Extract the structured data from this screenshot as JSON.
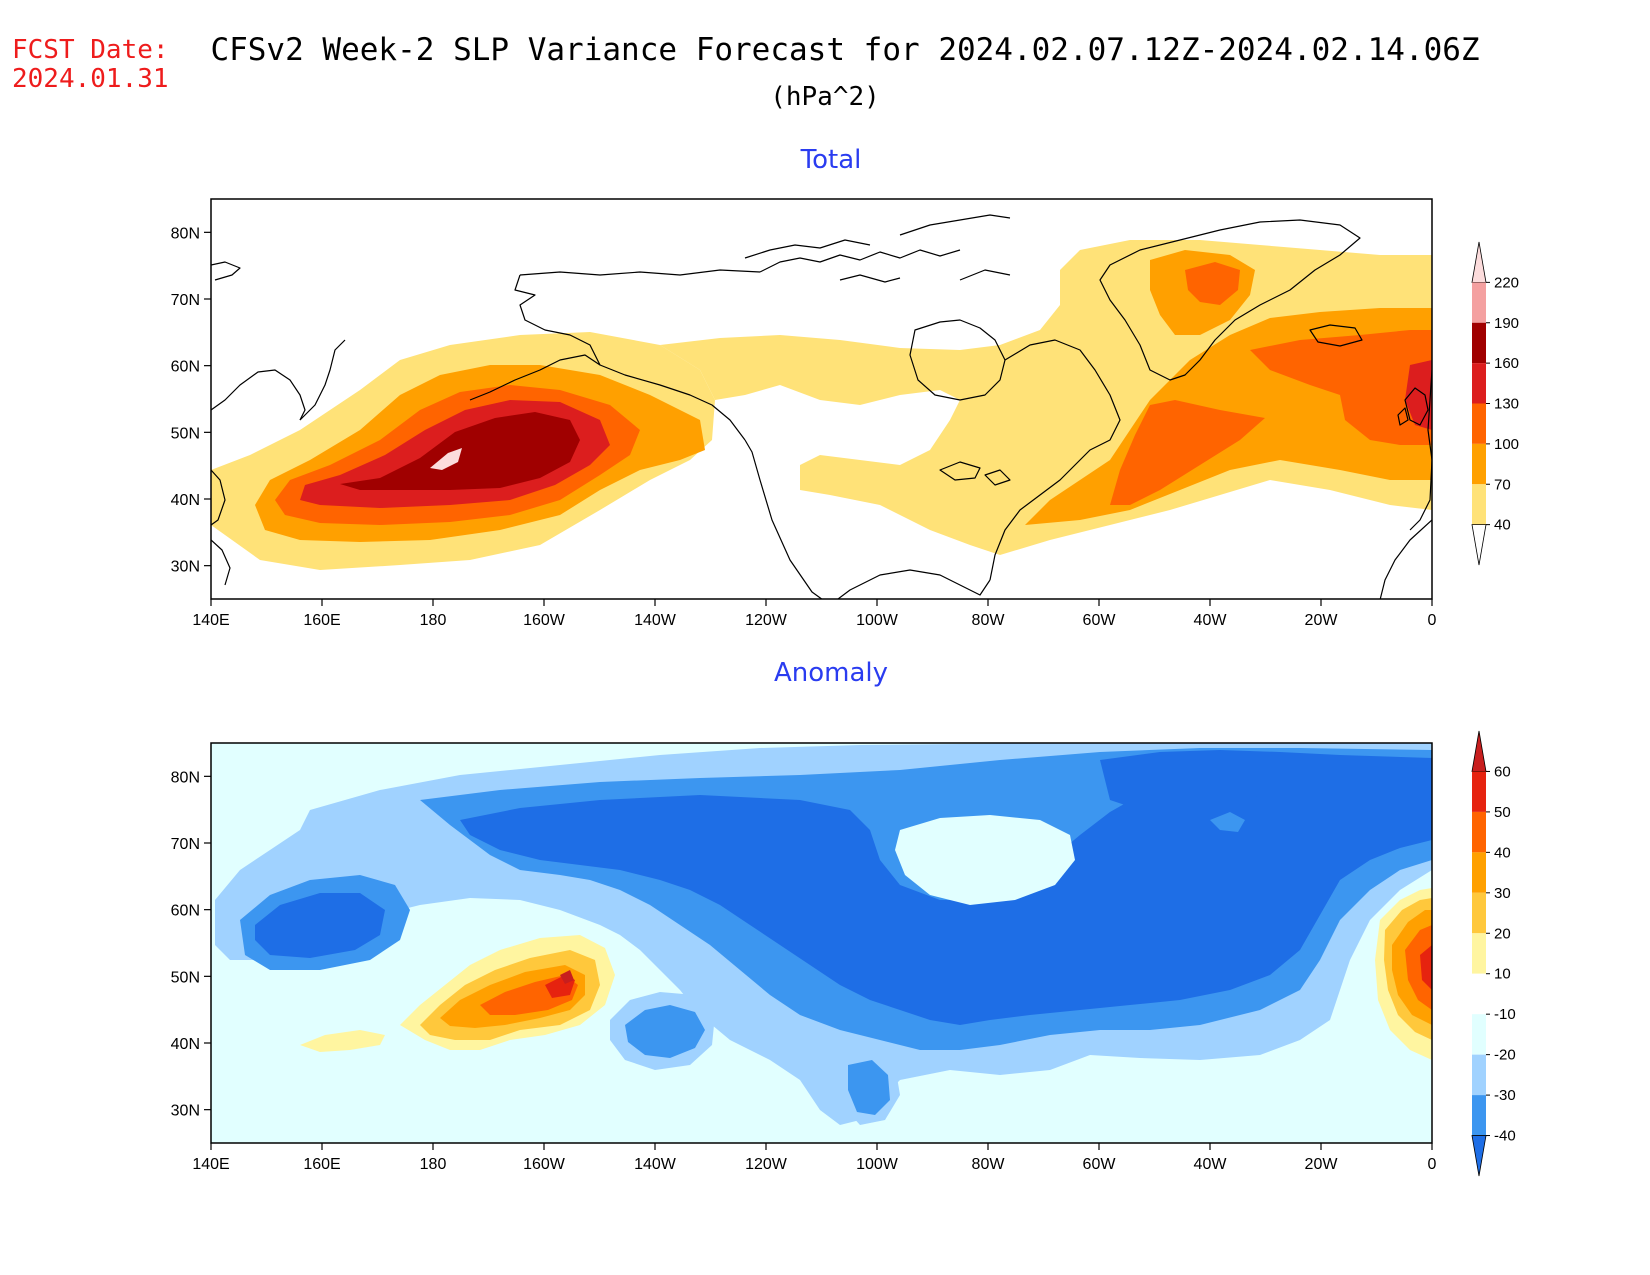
{
  "header": {
    "fcst_label": "FCST Date:",
    "fcst_date": "2024.01.31",
    "title": "CFSv2 Week-2 SLP Variance Forecast for 2024.02.07.12Z-2024.02.14.06Z",
    "units": "(hPa^2)"
  },
  "axes": {
    "lon_ticks": [
      "140E",
      "160E",
      "180",
      "160W",
      "140W",
      "120W",
      "100W",
      "80W",
      "60W",
      "40W",
      "20W",
      "0"
    ],
    "lat_ticks": [
      "80N",
      "70N",
      "60N",
      "50N",
      "40N",
      "30N"
    ],
    "lon_range": [
      140,
      360
    ],
    "lat_range": [
      25,
      85
    ]
  },
  "colors": {
    "title_blue": "#2a3cf0",
    "fcst_red": "#ee1c1c"
  },
  "panels": [
    {
      "id": "total",
      "title": "Total",
      "colorbar": {
        "labels": [
          "220",
          "190",
          "160",
          "130",
          "100",
          "70",
          "40"
        ],
        "colors": [
          "#fcdcdc",
          "#f4a0a0",
          "#a00000",
          "#dc1e1e",
          "#ff6400",
          "#ffa000",
          "#ffe278",
          "#ffffff"
        ]
      }
    },
    {
      "id": "anomaly",
      "title": "Anomaly",
      "colorbar": {
        "labels": [
          "60",
          "50",
          "40",
          "30",
          "20",
          "10",
          "-10",
          "-20",
          "-30",
          "-40"
        ],
        "colors": [
          "#c81e1e",
          "#e6230f",
          "#ff6400",
          "#ffa000",
          "#ffc83c",
          "#fff5a0",
          "#ffffff",
          "#e1ffff",
          "#a0d2ff",
          "#3c96f0",
          "#1e6ee6"
        ]
      }
    }
  ]
}
